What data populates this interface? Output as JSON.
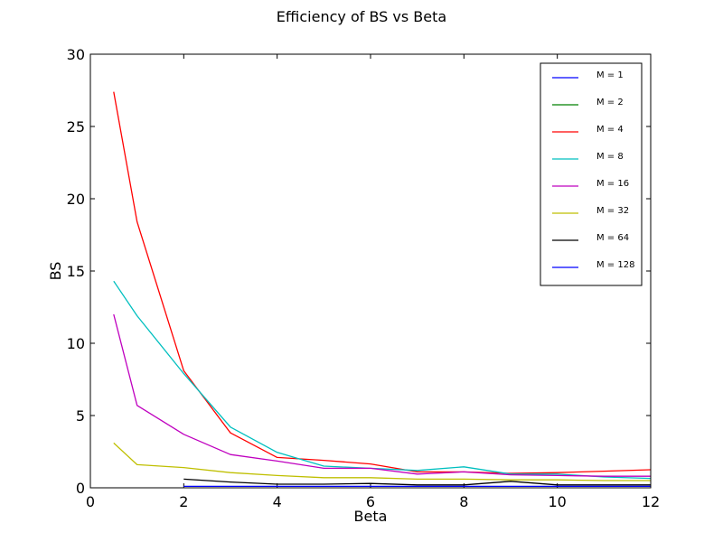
{
  "chart_data": {
    "type": "line",
    "title": "Efficiency of BS vs Beta",
    "xlabel": "Beta",
    "ylabel": "BS",
    "xlim": [
      0,
      12
    ],
    "ylim": [
      0,
      30
    ],
    "xticks": [
      "0",
      "2",
      "4",
      "6",
      "8",
      "10",
      "12"
    ],
    "yticks": [
      "0",
      "5",
      "10",
      "15",
      "20",
      "25",
      "30"
    ],
    "grid": false,
    "legend_position": "top-right",
    "series": [
      {
        "name": "M = 1",
        "color": "#0000ff",
        "x": [],
        "y": []
      },
      {
        "name": "M = 2",
        "color": "#008000",
        "x": [],
        "y": []
      },
      {
        "name": "M = 4",
        "color": "#ff0000",
        "x": [
          0.5,
          1,
          2,
          3,
          4,
          5,
          6,
          7,
          8,
          9,
          10,
          11,
          12
        ],
        "y": [
          27.4,
          18.4,
          8.1,
          3.8,
          2.1,
          1.9,
          1.65,
          1.1,
          1.1,
          1.0,
          1.05,
          1.15,
          1.25
        ]
      },
      {
        "name": "M = 8",
        "color": "#00bfbf",
        "x": [
          0.5,
          1,
          2,
          3,
          4,
          5,
          6,
          7,
          8,
          9,
          10,
          11,
          12
        ],
        "y": [
          14.3,
          11.9,
          7.9,
          4.2,
          2.45,
          1.5,
          1.35,
          1.2,
          1.45,
          0.95,
          0.95,
          0.75,
          0.65
        ]
      },
      {
        "name": "M = 16",
        "color": "#bf00bf",
        "x": [
          0.5,
          1,
          2,
          3,
          4,
          5,
          6,
          7,
          8,
          9,
          10,
          11,
          12
        ],
        "y": [
          12.0,
          5.7,
          3.7,
          2.3,
          1.85,
          1.35,
          1.35,
          0.95,
          1.1,
          0.9,
          0.85,
          0.8,
          0.8
        ]
      },
      {
        "name": "M = 32",
        "color": "#bfbf00",
        "x": [
          0.5,
          1,
          2,
          3,
          4,
          5,
          6,
          7,
          8,
          9,
          10,
          11,
          12
        ],
        "y": [
          3.1,
          1.6,
          1.4,
          1.05,
          0.85,
          0.7,
          0.7,
          0.6,
          0.6,
          0.55,
          0.55,
          0.5,
          0.5
        ]
      },
      {
        "name": "M = 64",
        "color": "#000000",
        "x": [
          2,
          3,
          4,
          5,
          6,
          7,
          8,
          9,
          10,
          11,
          12
        ],
        "y": [
          0.6,
          0.4,
          0.25,
          0.25,
          0.3,
          0.2,
          0.2,
          0.45,
          0.2,
          0.2,
          0.2
        ]
      },
      {
        "name": "M = 128",
        "color": "#0000ff",
        "x": [
          2,
          3,
          4,
          5,
          6,
          7,
          8,
          9,
          10,
          11,
          12
        ],
        "y": [
          0.1,
          0.1,
          0.1,
          0.1,
          0.1,
          0.1,
          0.1,
          0.1,
          0.1,
          0.1,
          0.1
        ]
      }
    ]
  }
}
